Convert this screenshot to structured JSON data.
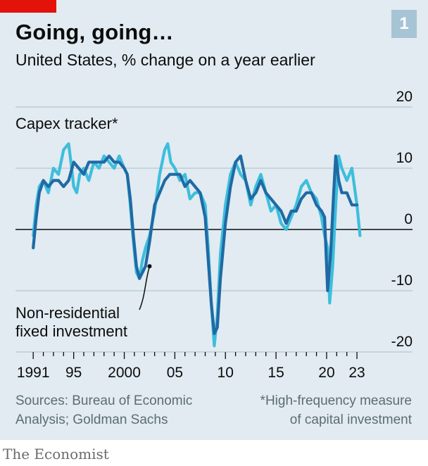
{
  "header": {
    "title": "Going, going…",
    "subtitle": "United States, % change on a year earlier",
    "badge": "1"
  },
  "footer": {
    "source_line1": "Sources: Bureau of Economic",
    "source_line2": "Analysis; Goldman Sachs",
    "note_line1": "*High-frequency measure",
    "note_line2": "of capital investment",
    "publisher": "The Economist"
  },
  "colors": {
    "panel_bg": "#e1ebf1",
    "capex_tracker": "#3ebedc",
    "non_residential": "#1f6aa5",
    "tag_red": "#e3120b"
  },
  "chart_data": {
    "type": "line",
    "ylim": [
      -20,
      20
    ],
    "yticks": [
      20,
      10,
      0,
      -10,
      -20
    ],
    "ytick_labels": [
      "20",
      "10",
      "0",
      "-10",
      "-20"
    ],
    "x_range": [
      1990.5,
      2023.9
    ],
    "xtick_values": [
      1991,
      1995,
      2000,
      2005,
      2010,
      2015,
      2020,
      2023
    ],
    "xtick_labels": [
      "1991",
      "95",
      "2000",
      "05",
      "10",
      "15",
      "20",
      "23"
    ],
    "grid": true,
    "series": [
      {
        "name": "Capex tracker*",
        "color": "#3ebedc",
        "x": [
          1991.0,
          1991.3,
          1991.6,
          1992.0,
          1992.5,
          1993.0,
          1993.5,
          1994.0,
          1994.5,
          1994.8,
          1995.0,
          1995.3,
          1995.6,
          1996.0,
          1996.5,
          1997.0,
          1997.5,
          1998.0,
          1998.5,
          1999.0,
          1999.5,
          2000.0,
          2000.3,
          2000.6,
          2000.9,
          2001.2,
          2001.5,
          2001.8,
          2002.1,
          2002.5,
          2003.0,
          2003.5,
          2004.0,
          2004.3,
          2004.6,
          2005.0,
          2005.5,
          2006.0,
          2006.5,
          2007.0,
          2007.5,
          2008.0,
          2008.3,
          2008.6,
          2008.9,
          2009.2,
          2009.5,
          2010.0,
          2010.5,
          2011.0,
          2011.5,
          2012.0,
          2012.5,
          2013.0,
          2013.5,
          2014.0,
          2014.5,
          2015.0,
          2015.5,
          2016.0,
          2016.5,
          2017.0,
          2017.5,
          2018.0,
          2018.5,
          2019.0,
          2019.5,
          2019.8,
          2020.1,
          2020.3,
          2020.6,
          2020.9,
          2021.2,
          2021.5,
          2022.0,
          2022.5,
          2023.0,
          2023.3
        ],
        "y": [
          -1,
          4,
          7,
          8,
          6,
          10,
          9,
          13,
          14,
          10,
          7,
          6,
          9,
          10,
          8,
          11,
          10,
          12,
          11,
          10,
          12,
          10,
          9,
          4,
          -2,
          -7,
          -8,
          -5,
          -3,
          -1,
          3,
          9,
          13,
          14,
          11,
          10,
          8,
          9,
          5,
          6,
          6,
          4,
          -3,
          -12,
          -19,
          -14,
          -4,
          4,
          9,
          11,
          9,
          8,
          4,
          7,
          9,
          6,
          3,
          4,
          1,
          0,
          2,
          4,
          7,
          8,
          6,
          5,
          2,
          -1,
          -3,
          -12,
          -6,
          4,
          12,
          10,
          8,
          10,
          4,
          -1
        ]
      },
      {
        "name": "Non-residential fixed investment",
        "color": "#1f6aa5",
        "x": [
          1991.0,
          1991.3,
          1991.6,
          1992.0,
          1992.5,
          1993.0,
          1993.5,
          1994.0,
          1994.5,
          1995.0,
          1995.5,
          1996.0,
          1996.5,
          1997.0,
          1997.5,
          1998.0,
          1998.5,
          1999.0,
          1999.5,
          2000.0,
          2000.3,
          2000.6,
          2000.9,
          2001.2,
          2001.5,
          2001.8,
          2002.1,
          2002.5,
          2003.0,
          2003.5,
          2004.0,
          2004.5,
          2005.0,
          2005.5,
          2006.0,
          2006.5,
          2007.0,
          2007.5,
          2008.0,
          2008.3,
          2008.6,
          2008.9,
          2009.2,
          2009.5,
          2010.0,
          2010.5,
          2011.0,
          2011.5,
          2012.0,
          2012.5,
          2013.0,
          2013.5,
          2014.0,
          2014.5,
          2015.0,
          2015.5,
          2016.0,
          2016.5,
          2017.0,
          2017.5,
          2018.0,
          2018.5,
          2019.0,
          2019.5,
          2019.8,
          2020.1,
          2020.4,
          2020.7,
          2020.9,
          2021.2,
          2021.5,
          2022.0,
          2022.5,
          2023.0
        ],
        "y": [
          -3,
          2,
          6,
          8,
          7,
          8,
          8,
          7,
          8,
          11,
          10,
          9,
          11,
          11,
          11,
          11,
          12,
          11,
          11,
          10,
          9,
          5,
          -1,
          -6,
          -8,
          -7,
          -6,
          -2,
          4,
          6,
          8,
          9,
          9,
          9,
          7,
          8,
          7,
          6,
          2,
          -5,
          -12,
          -17,
          -16,
          -8,
          1,
          7,
          11,
          12,
          8,
          5,
          6,
          8,
          6,
          5,
          4,
          3,
          1,
          3,
          3,
          5,
          6,
          6,
          4,
          3,
          2,
          -10,
          -4,
          6,
          12,
          8,
          6,
          6,
          4,
          4
        ]
      }
    ],
    "annotations": [
      {
        "text": "Capex tracker*",
        "series": 0
      },
      {
        "text_lines": [
          "Non-residential",
          "fixed investment"
        ],
        "series": 1,
        "pointer_x": 2002.5,
        "pointer_y": -6
      }
    ]
  }
}
